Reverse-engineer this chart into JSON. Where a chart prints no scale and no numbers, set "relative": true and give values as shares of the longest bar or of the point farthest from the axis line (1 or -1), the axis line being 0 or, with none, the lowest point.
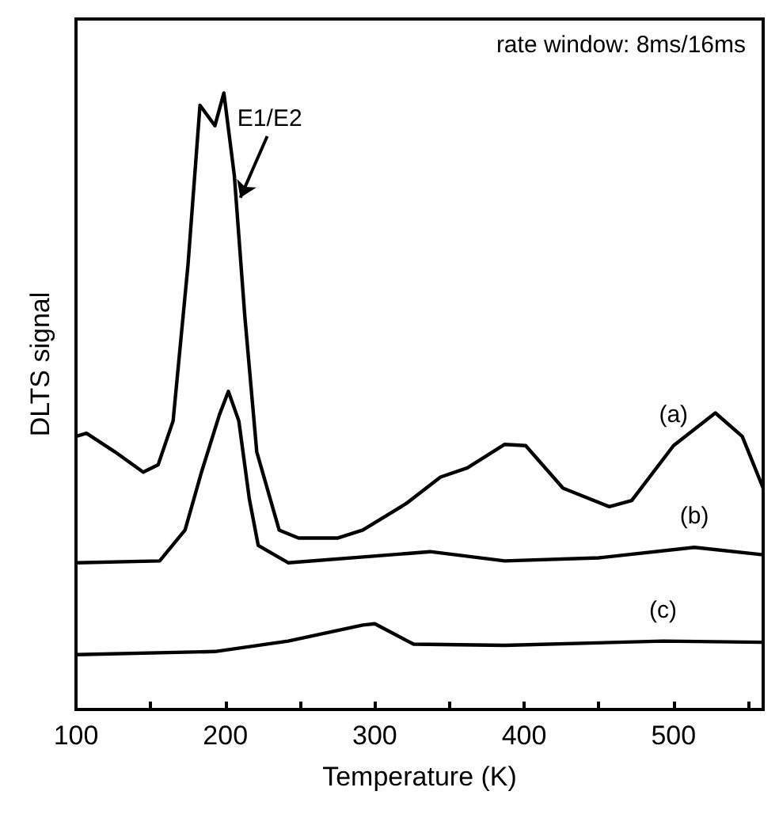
{
  "chart_data": {
    "type": "line",
    "relative": true,
    "xlabel": "Temperature (K)",
    "ylabel": "DLTS signal",
    "xlim": [
      100,
      560
    ],
    "xticks": [
      100,
      {
        "value": 150,
        "label": null
      },
      200,
      {
        "value": 250,
        "label": null
      },
      300,
      {
        "value": 350,
        "label": null
      },
      400,
      {
        "value": 450,
        "label": null
      },
      500,
      {
        "value": 550,
        "label": null
      }
    ],
    "tick_labels": "x",
    "legend": false,
    "grid": false,
    "marker": "none",
    "annotations": [
      "rate window: 8ms/16ms",
      {
        "text": "E1/E2",
        "x": 210,
        "y": 0.83
      }
    ],
    "series": [
      {
        "name": "(a)",
        "color": "#000000",
        "x": [
          100,
          107,
          126,
          145,
          155,
          165,
          175,
          183,
          193,
          199,
          206,
          213,
          221,
          236,
          249,
          275,
          292,
          321,
          344,
          362,
          387,
          401,
          426,
          457,
          472,
          500,
          528,
          546,
          560
        ],
        "values": [
          0.443,
          0.448,
          0.418,
          0.385,
          0.397,
          0.468,
          0.722,
          0.98,
          0.947,
          1.0,
          0.866,
          0.638,
          0.418,
          0.291,
          0.278,
          0.278,
          0.291,
          0.334,
          0.377,
          0.392,
          0.43,
          0.428,
          0.359,
          0.329,
          0.339,
          0.428,
          0.481,
          0.443,
          0.359
        ]
      },
      {
        "name": "(b)",
        "color": "#000000",
        "x": [
          100,
          156,
          173,
          184,
          196,
          202,
          209,
          216,
          222,
          242,
          322,
          337,
          387,
          450,
          514,
          560
        ],
        "values": [
          0.238,
          0.241,
          0.291,
          0.385,
          0.478,
          0.516,
          0.468,
          0.342,
          0.266,
          0.238,
          0.253,
          0.256,
          0.241,
          0.246,
          0.263,
          0.251
        ]
      },
      {
        "name": "(c)",
        "color": "#000000",
        "x": [
          100,
          193,
          242,
          292,
          300,
          322,
          326,
          387,
          493,
          560
        ],
        "values": [
          0.089,
          0.094,
          0.111,
          0.137,
          0.139,
          0.111,
          0.106,
          0.104,
          0.111,
          0.109
        ]
      }
    ]
  }
}
